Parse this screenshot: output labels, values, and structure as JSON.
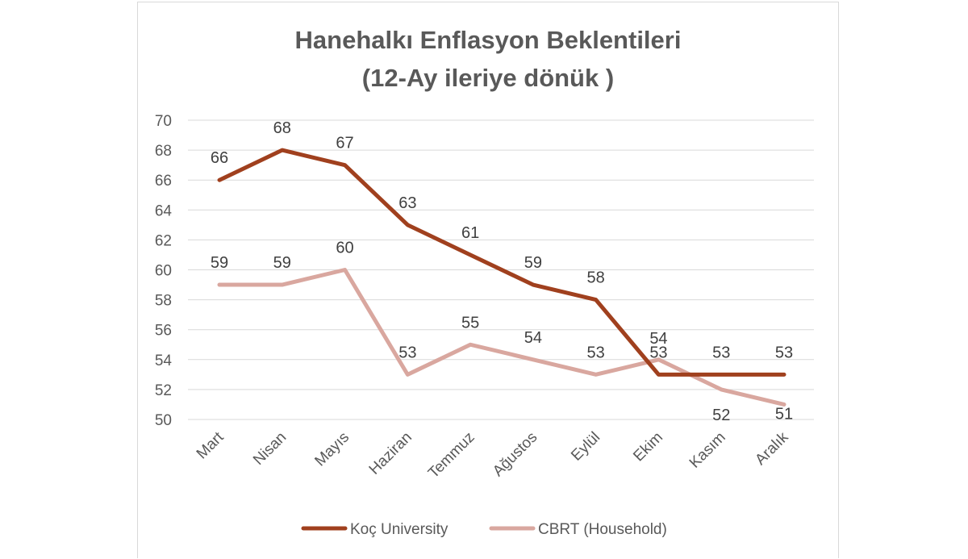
{
  "chart_data": {
    "type": "line",
    "title": "Hanehalkı Enflasyon Beklentileri",
    "subtitle": "(12-Ay ileriye dönük )",
    "categories": [
      "Mart",
      "Nisan",
      "Mayıs",
      "Haziran",
      "Temmuz",
      "Ağustos",
      "Eylül",
      "Ekim",
      "Kasım",
      "Aralık"
    ],
    "series": [
      {
        "name": "Koç University",
        "color": "#A0401E",
        "values": [
          66,
          68,
          67,
          63,
          61,
          59,
          58,
          53,
          53,
          53
        ]
      },
      {
        "name": "CBRT (Household)",
        "color": "#D9A79F",
        "values": [
          59,
          59,
          60,
          53,
          55,
          54,
          53,
          54,
          52,
          51
        ]
      }
    ],
    "data_labels": [
      [
        "66",
        "68",
        "67",
        "63",
        "61",
        "59",
        "58",
        "53",
        "53",
        "53"
      ],
      [
        "59",
        "59",
        "60",
        "53",
        "55",
        "54",
        "53",
        "54",
        "52",
        "51"
      ]
    ],
    "y_ticks": [
      "50",
      "52",
      "54",
      "56",
      "58",
      "60",
      "62",
      "64",
      "66",
      "68",
      "70"
    ],
    "ylim": [
      50,
      70
    ],
    "y_step": 2,
    "grid": true,
    "legend_position": "bottom",
    "xlabel": "",
    "ylabel": ""
  }
}
